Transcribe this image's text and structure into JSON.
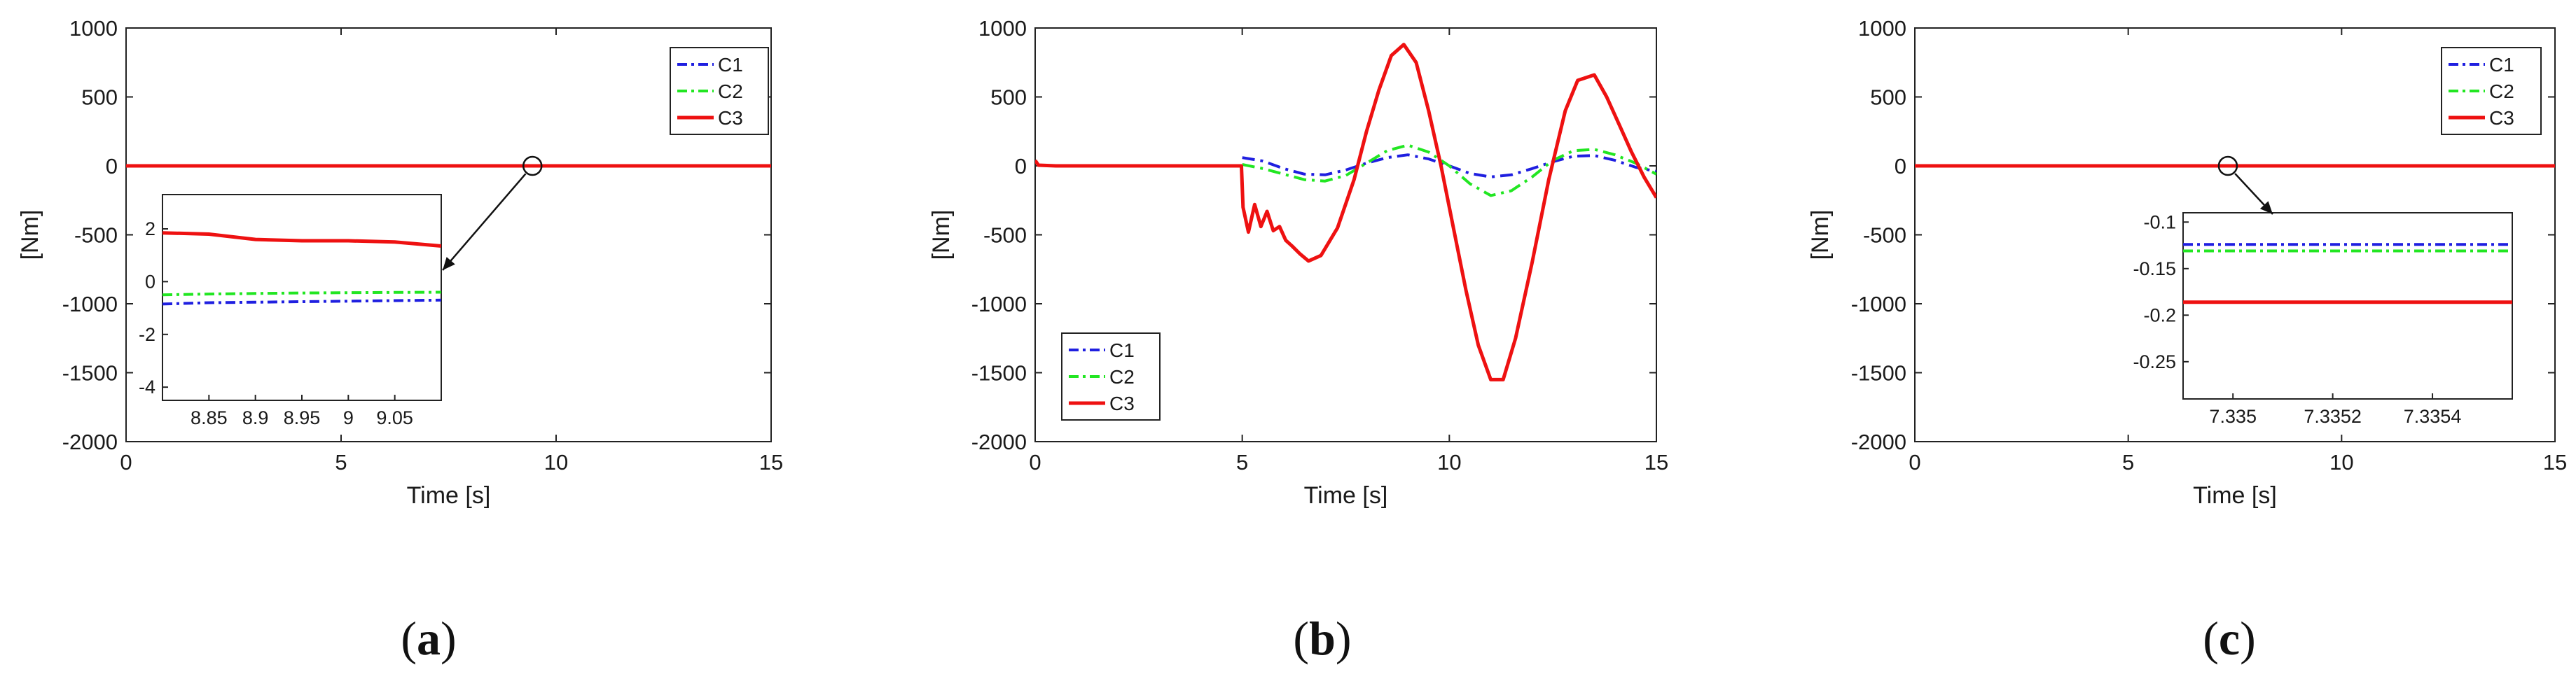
{
  "colors": {
    "C1": "#1f1fe0",
    "C2": "#22e622",
    "C3": "#ee1111",
    "axis": "#222222"
  },
  "chart_data": [
    {
      "type": "line",
      "panel": "a",
      "xlabel": "Time [s]",
      "ylabel": "[Nm]",
      "xlim": [
        0,
        15
      ],
      "ylim": [
        -2000,
        1000
      ],
      "xticks": [
        "0",
        "5",
        "10",
        "15"
      ],
      "yticks": [
        "1000",
        "500",
        "0",
        "-500",
        "-1000",
        "-1500",
        "-2000"
      ],
      "legend": [
        "C1",
        "C2",
        "C3"
      ],
      "legend_position": "top-right",
      "series": [
        {
          "name": "C1",
          "x": [
            0,
            15
          ],
          "y": [
            0,
            0
          ]
        },
        {
          "name": "C2",
          "x": [
            0,
            15
          ],
          "y": [
            0,
            0
          ]
        },
        {
          "name": "C3",
          "x": [
            0,
            15
          ],
          "y": [
            0,
            0
          ]
        }
      ],
      "marker": {
        "x": 9.45,
        "y": 0
      },
      "inset": {
        "xlim": [
          8.8,
          9.1
        ],
        "ylim": [
          -4.5,
          3.3
        ],
        "xticks": [
          "8.85",
          "8.9",
          "8.95",
          "9",
          "9.05"
        ],
        "yticks": [
          "2",
          "0",
          "-2",
          "-4"
        ],
        "series": [
          {
            "name": "C1",
            "x": [
              8.8,
              8.85,
              8.9,
              8.95,
              9.0,
              9.05,
              9.1
            ],
            "y": [
              -0.85,
              -0.8,
              -0.78,
              -0.76,
              -0.74,
              -0.72,
              -0.7
            ]
          },
          {
            "name": "C2",
            "x": [
              8.8,
              8.85,
              8.9,
              8.95,
              9.0,
              9.05,
              9.1
            ],
            "y": [
              -0.5,
              -0.47,
              -0.45,
              -0.43,
              -0.42,
              -0.41,
              -0.4
            ]
          },
          {
            "name": "C3",
            "x": [
              8.8,
              8.85,
              8.9,
              8.95,
              9.0,
              9.05,
              9.1
            ],
            "y": [
              1.85,
              1.8,
              1.6,
              1.55,
              1.55,
              1.5,
              1.35
            ]
          }
        ]
      },
      "caption": "(a)",
      "caption_letter": "a"
    },
    {
      "type": "line",
      "panel": "b",
      "xlabel": "Time [s]",
      "ylabel": "[Nm]",
      "xlim": [
        0,
        15
      ],
      "ylim": [
        -2000,
        1000
      ],
      "xticks": [
        "0",
        "5",
        "10",
        "15"
      ],
      "yticks": [
        "1000",
        "500",
        "0",
        "-500",
        "-1000",
        "-1500",
        "-2000"
      ],
      "legend": [
        "C1",
        "C2",
        "C3"
      ],
      "legend_position": "bottom-left",
      "series": [
        {
          "name": "C1",
          "x": [
            5,
            5.5,
            6,
            6.5,
            7,
            7.5,
            8,
            8.5,
            9,
            9.5,
            10,
            10.5,
            11,
            11.5,
            12,
            12.5,
            13,
            13.5,
            14,
            14.5,
            15
          ],
          "y": [
            60,
            35,
            -20,
            -60,
            -65,
            -30,
            20,
            60,
            80,
            50,
            0,
            -55,
            -80,
            -65,
            -20,
            30,
            70,
            75,
            40,
            -10,
            -40
          ]
        },
        {
          "name": "C2",
          "x": [
            5,
            5.5,
            6,
            6.5,
            7,
            7.5,
            8,
            8.5,
            9,
            9.5,
            10,
            10.5,
            11,
            11.5,
            12,
            12.5,
            13,
            13.5,
            14,
            14.5,
            15
          ],
          "y": [
            10,
            -20,
            -60,
            -100,
            -110,
            -70,
            20,
            110,
            150,
            100,
            0,
            -130,
            -215,
            -180,
            -80,
            40,
            110,
            120,
            80,
            20,
            -60
          ]
        },
        {
          "name": "C3",
          "x": [
            0,
            0.08,
            0.5,
            2,
            4,
            4.98,
            5.02,
            5.15,
            5.3,
            5.45,
            5.6,
            5.75,
            5.9,
            6.05,
            6.2,
            6.4,
            6.6,
            6.9,
            7.3,
            7.7,
            8.0,
            8.3,
            8.6,
            8.9,
            9.2,
            9.5,
            9.8,
            10.1,
            10.4,
            10.7,
            11.0,
            11.3,
            11.6,
            12.0,
            12.4,
            12.8,
            13.1,
            13.5,
            13.8,
            14.1,
            14.4,
            14.7,
            15.0
          ],
          "y": [
            40,
            5,
            0,
            0,
            0,
            0,
            -300,
            -480,
            -280,
            -440,
            -330,
            -470,
            -440,
            -540,
            -580,
            -640,
            -690,
            -650,
            -450,
            -100,
            250,
            550,
            800,
            880,
            750,
            400,
            0,
            -450,
            -900,
            -1300,
            -1550,
            -1550,
            -1250,
            -700,
            -100,
            400,
            620,
            660,
            500,
            300,
            100,
            -80,
            -230
          ]
        }
      ],
      "caption": "(b)",
      "caption_letter": "b"
    },
    {
      "type": "line",
      "panel": "c",
      "xlabel": "Time [s]",
      "ylabel": "[Nm]",
      "xlim": [
        0,
        15
      ],
      "ylim": [
        -2000,
        1000
      ],
      "xticks": [
        "0",
        "5",
        "10",
        "15"
      ],
      "yticks": [
        "1000",
        "500",
        "0",
        "-500",
        "-1000",
        "-1500",
        "-2000"
      ],
      "legend": [
        "C1",
        "C2",
        "C3"
      ],
      "legend_position": "top-right",
      "series": [
        {
          "name": "C1",
          "x": [
            0,
            15
          ],
          "y": [
            0,
            0
          ]
        },
        {
          "name": "C2",
          "x": [
            0,
            15
          ],
          "y": [
            0,
            0
          ]
        },
        {
          "name": "C3",
          "x": [
            0,
            15
          ],
          "y": [
            0,
            0
          ]
        }
      ],
      "marker": {
        "x": 7.335,
        "y": 0
      },
      "inset": {
        "xlim": [
          7.3349,
          7.33556
        ],
        "ylim": [
          -0.29,
          -0.09
        ],
        "xticks": [
          "7.335",
          "7.3352",
          "7.3354"
        ],
        "xtick_values": [
          7.335,
          7.3352,
          7.3354
        ],
        "yticks": [
          "-0.1",
          "-0.15",
          "-0.2",
          "-0.25"
        ],
        "series": [
          {
            "name": "C1",
            "x": [
              7.3349,
              7.33556
            ],
            "y": [
              -0.124,
              -0.124
            ]
          },
          {
            "name": "C2",
            "x": [
              7.3349,
              7.33556
            ],
            "y": [
              -0.131,
              -0.131
            ]
          },
          {
            "name": "C3",
            "x": [
              7.3349,
              7.33556
            ],
            "y": [
              -0.186,
              -0.186
            ]
          }
        ]
      },
      "caption": "(c)",
      "caption_letter": "c"
    }
  ]
}
